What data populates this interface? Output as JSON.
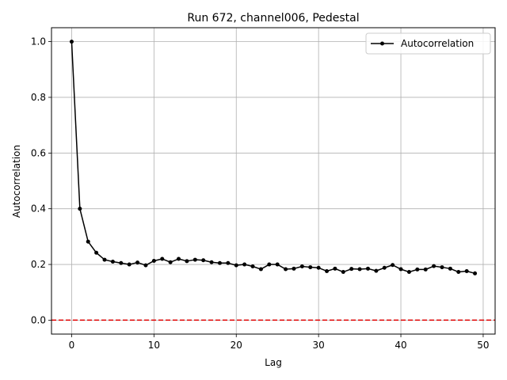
{
  "chart_data": {
    "type": "line",
    "title": "Run 672, channel006, Pedestal",
    "xlabel": "Lag",
    "ylabel": "Autocorrelation",
    "xlim": [
      -2.45,
      51.45
    ],
    "ylim": [
      -0.05,
      1.05
    ],
    "xticks": [
      0,
      10,
      20,
      30,
      40,
      50
    ],
    "yticks": [
      0.0,
      0.2,
      0.4,
      0.6,
      0.8,
      1.0
    ],
    "xtick_labels": [
      "0",
      "10",
      "20",
      "30",
      "40",
      "50"
    ],
    "ytick_labels": [
      "0.0",
      "0.2",
      "0.4",
      "0.6",
      "0.8",
      "1.0"
    ],
    "grid": true,
    "legend_position": "top-right",
    "series": [
      {
        "name": "Autocorrelation",
        "color": "#000000",
        "marker": "circle",
        "x": [
          0,
          1,
          2,
          3,
          4,
          5,
          6,
          7,
          8,
          9,
          10,
          11,
          12,
          13,
          14,
          15,
          16,
          17,
          18,
          19,
          20,
          21,
          22,
          23,
          24,
          25,
          26,
          27,
          28,
          29,
          30,
          31,
          32,
          33,
          34,
          35,
          36,
          37,
          38,
          39,
          40,
          41,
          42,
          43,
          44,
          45,
          46,
          47,
          48,
          49
        ],
        "y": [
          1.0,
          0.4,
          0.282,
          0.242,
          0.217,
          0.21,
          0.205,
          0.2,
          0.207,
          0.197,
          0.213,
          0.22,
          0.208,
          0.22,
          0.212,
          0.217,
          0.215,
          0.208,
          0.205,
          0.205,
          0.197,
          0.2,
          0.193,
          0.183,
          0.2,
          0.2,
          0.183,
          0.185,
          0.193,
          0.19,
          0.188,
          0.176,
          0.185,
          0.173,
          0.184,
          0.183,
          0.185,
          0.177,
          0.188,
          0.198,
          0.183,
          0.173,
          0.182,
          0.182,
          0.194,
          0.19,
          0.185,
          0.173,
          0.176,
          0.168
        ]
      }
    ],
    "reference_line": {
      "y": 0.0,
      "color": "#e00000",
      "style": "dashed"
    }
  }
}
